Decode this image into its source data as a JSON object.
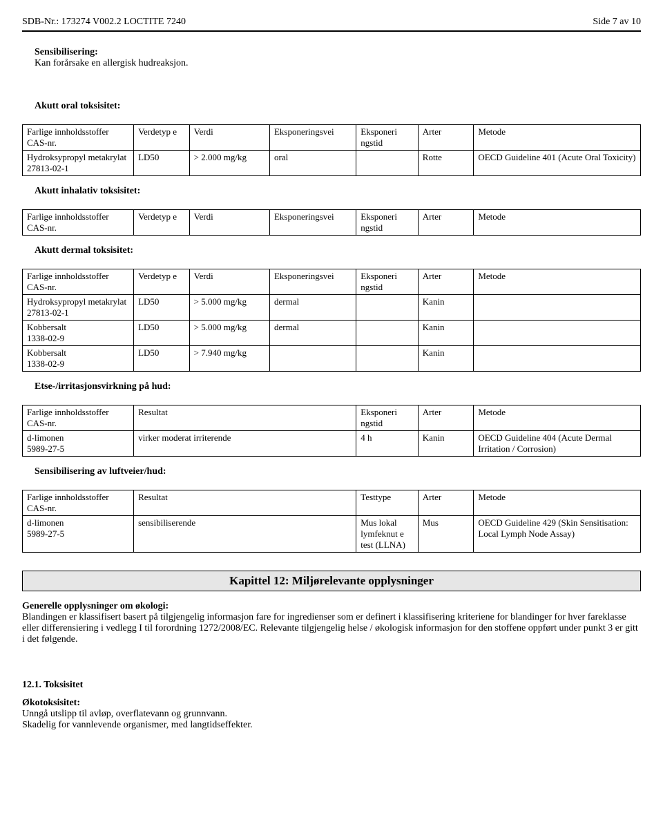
{
  "header": {
    "left": "SDB-Nr.: 173274   V002.2   LOCTITE 7240",
    "right": "Side 7 av 10"
  },
  "sensibilisering": {
    "title": "Sensibilisering:",
    "text": "Kan forårsake en allergisk hudreaksjon."
  },
  "tables": {
    "columns_full": [
      "Farlige innholdsstoffer CAS-nr.",
      "Verdetyp e",
      "Verdi",
      "Eksponeringsvei",
      "Eksponeri ngstid",
      "Arter",
      "Metode"
    ],
    "columns_result": [
      "Farlige innholdsstoffer CAS-nr.",
      "Resultat",
      "Eksponeri ngstid",
      "Arter",
      "Metode"
    ],
    "columns_sens": [
      "Farlige innholdsstoffer CAS-nr.",
      "Resultat",
      "Testtype",
      "Arter",
      "Metode"
    ]
  },
  "oral": {
    "title": "Akutt oral toksisitet:",
    "rows": [
      [
        "Hydroksypropyl metakrylat\n27813-02-1",
        "LD50",
        "> 2.000 mg/kg",
        "oral",
        "",
        "Rotte",
        "OECD Guideline 401 (Acute Oral Toxicity)"
      ]
    ]
  },
  "inhalativ": {
    "title": "Akutt inhalativ toksisitet:",
    "rows": []
  },
  "dermal": {
    "title": "Akutt dermal toksisitet:",
    "rows": [
      [
        "Hydroksypropyl metakrylat\n27813-02-1",
        "LD50",
        "> 5.000 mg/kg",
        "dermal",
        "",
        "Kanin",
        ""
      ],
      [
        "Kobbersalt\n1338-02-9",
        "LD50",
        "> 5.000 mg/kg",
        "dermal",
        "",
        "Kanin",
        ""
      ],
      [
        "Kobbersalt\n1338-02-9",
        "LD50",
        "> 7.940 mg/kg",
        "",
        "",
        "Kanin",
        ""
      ]
    ]
  },
  "etse": {
    "title": "Etse-/irritasjonsvirkning på hud:",
    "rows": [
      [
        "d-limonen\n5989-27-5",
        "virker moderat irriterende",
        "4 h",
        "Kanin",
        "OECD Guideline 404 (Acute Dermal Irritation / Corrosion)"
      ]
    ]
  },
  "sens": {
    "title": "Sensibilisering av luftveier/hud:",
    "rows": [
      [
        "d-limonen\n5989-27-5",
        "sensibiliserende",
        "Mus lokal lymfeknut e test (LLNA)",
        "Mus",
        "OECD Guideline 429 (Skin Sensitisation: Local Lymph Node Assay)"
      ]
    ]
  },
  "chapter12": {
    "title": "Kapittel 12: Miljørelevante opplysninger",
    "general_title": "Generelle opplysninger om økologi:",
    "general_text": "Blandingen er klassifisert basert på tilgjengelig informasjon fare for ingredienser som er definert i klassifisering kriteriene for blandinger for hver fareklasse eller differensiering i vedlegg I til forordning 1272/2008/EC. Relevante tilgjengelig helse / økologisk informasjon for den stoffene oppført under punkt 3 er gitt i det følgende.",
    "tox_title": "12.1. Toksisitet",
    "eco_title": "Økotoksisitet:",
    "eco_line1": "Unngå utslipp til avløp, overflatevann og grunnvann.",
    "eco_line2": "Skadelig for vannlevende organismer, med langtidseffekter."
  },
  "col_widths": {
    "full": [
      "18%",
      "9%",
      "13%",
      "14%",
      "10%",
      "9%",
      "27%"
    ],
    "result": [
      "18%",
      "36%",
      "10%",
      "9%",
      "27%"
    ],
    "sens": [
      "18%",
      "36%",
      "10%",
      "9%",
      "27%"
    ]
  }
}
